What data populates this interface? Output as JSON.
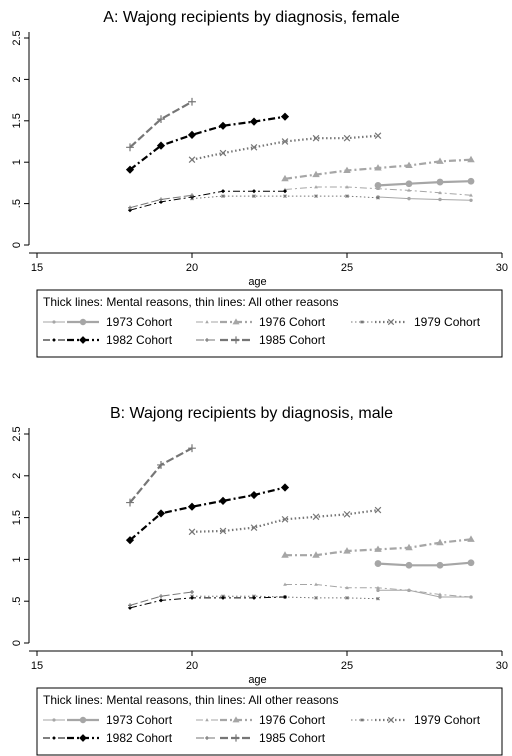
{
  "chart_data": [
    {
      "type": "line",
      "title": "A: Wajong recipients by diagnosis, female",
      "xlabel": "age",
      "ylabel": "",
      "xlim": [
        15,
        30
      ],
      "ylim": [
        0,
        2.5
      ],
      "xticks": [
        "15",
        "20",
        "25",
        "30"
      ],
      "yticks": [
        "0",
        ".5",
        "1",
        "1.5",
        "2",
        "2.5"
      ],
      "grid": false,
      "legend": {
        "placement": "bottom",
        "title": "Thick lines: Mental reasons, thin lines: All other reasons",
        "entries": [
          "1973 Cohort",
          "1976 Cohort",
          "1979 Cohort",
          "1982 Cohort",
          "1985 Cohort"
        ]
      },
      "series": [
        {
          "name": "1973 Cohort",
          "kind": "mental",
          "x": [
            26,
            27,
            28,
            29
          ],
          "y": [
            0.72,
            0.74,
            0.76,
            0.77
          ]
        },
        {
          "name": "1973 Cohort",
          "kind": "other",
          "x": [
            26,
            27,
            28,
            29
          ],
          "y": [
            0.58,
            0.56,
            0.55,
            0.54
          ]
        },
        {
          "name": "1976 Cohort",
          "kind": "mental",
          "x": [
            23,
            24,
            25,
            26,
            27,
            28,
            29
          ],
          "y": [
            0.8,
            0.85,
            0.9,
            0.93,
            0.96,
            1.01,
            1.03
          ]
        },
        {
          "name": "1976 Cohort",
          "kind": "other",
          "x": [
            23,
            24,
            25,
            26,
            27,
            28,
            29
          ],
          "y": [
            0.67,
            0.7,
            0.7,
            0.68,
            0.66,
            0.63,
            0.6
          ]
        },
        {
          "name": "1979 Cohort",
          "kind": "mental",
          "x": [
            20,
            21,
            22,
            23,
            24,
            25,
            26
          ],
          "y": [
            1.03,
            1.11,
            1.18,
            1.25,
            1.29,
            1.29,
            1.32
          ]
        },
        {
          "name": "1979 Cohort",
          "kind": "other",
          "x": [
            20,
            21,
            22,
            23,
            24,
            25,
            26
          ],
          "y": [
            0.56,
            0.59,
            0.59,
            0.59,
            0.59,
            0.59,
            0.57
          ]
        },
        {
          "name": "1982 Cohort",
          "kind": "mental",
          "x": [
            18,
            19,
            20,
            21,
            22,
            23
          ],
          "y": [
            0.91,
            1.2,
            1.33,
            1.44,
            1.49,
            1.55
          ]
        },
        {
          "name": "1982 Cohort",
          "kind": "other",
          "x": [
            18,
            19,
            20,
            21,
            22,
            23
          ],
          "y": [
            0.42,
            0.52,
            0.58,
            0.65,
            0.65,
            0.65
          ]
        },
        {
          "name": "1985 Cohort",
          "kind": "mental",
          "x": [
            18,
            19,
            20
          ],
          "y": [
            1.18,
            1.52,
            1.73
          ]
        },
        {
          "name": "1985 Cohort",
          "kind": "other",
          "x": [
            18,
            19,
            20
          ],
          "y": [
            0.45,
            0.55,
            0.6
          ]
        }
      ]
    },
    {
      "type": "line",
      "title": "B: Wajong recipients by diagnosis, male",
      "xlabel": "age",
      "ylabel": "",
      "xlim": [
        15,
        30
      ],
      "ylim": [
        0,
        2.5
      ],
      "xticks": [
        "15",
        "20",
        "25",
        "30"
      ],
      "yticks": [
        "0",
        ".5",
        "1",
        "1.5",
        "2",
        "2.5"
      ],
      "grid": false,
      "legend": {
        "placement": "bottom",
        "title": "Thick lines: Mental reasons, thin lines: All other reasons",
        "entries": [
          "1973 Cohort",
          "1976 Cohort",
          "1979 Cohort",
          "1982 Cohort",
          "1985 Cohort"
        ]
      },
      "series": [
        {
          "name": "1973 Cohort",
          "kind": "mental",
          "x": [
            26,
            27,
            28,
            29
          ],
          "y": [
            0.95,
            0.93,
            0.93,
            0.96
          ]
        },
        {
          "name": "1973 Cohort",
          "kind": "other",
          "x": [
            26,
            27,
            28,
            29
          ],
          "y": [
            0.63,
            0.63,
            0.55,
            0.55
          ]
        },
        {
          "name": "1976 Cohort",
          "kind": "mental",
          "x": [
            23,
            24,
            25,
            26,
            27,
            28,
            29
          ],
          "y": [
            1.05,
            1.05,
            1.1,
            1.12,
            1.14,
            1.2,
            1.24
          ]
        },
        {
          "name": "1976 Cohort",
          "kind": "other",
          "x": [
            23,
            24,
            25,
            26,
            27,
            28,
            29
          ],
          "y": [
            0.7,
            0.7,
            0.66,
            0.66,
            0.63,
            0.58,
            0.55
          ]
        },
        {
          "name": "1979 Cohort",
          "kind": "mental",
          "x": [
            20,
            21,
            22,
            23,
            24,
            25,
            26
          ],
          "y": [
            1.33,
            1.34,
            1.38,
            1.48,
            1.51,
            1.54,
            1.59
          ]
        },
        {
          "name": "1979 Cohort",
          "kind": "other",
          "x": [
            20,
            21,
            22,
            23,
            24,
            25,
            26
          ],
          "y": [
            0.56,
            0.56,
            0.56,
            0.55,
            0.54,
            0.54,
            0.53
          ]
        },
        {
          "name": "1982 Cohort",
          "kind": "mental",
          "x": [
            18,
            19,
            20,
            21,
            22,
            23
          ],
          "y": [
            1.23,
            1.55,
            1.63,
            1.7,
            1.77,
            1.86
          ]
        },
        {
          "name": "1982 Cohort",
          "kind": "other",
          "x": [
            18,
            19,
            20,
            21,
            22,
            23
          ],
          "y": [
            0.42,
            0.51,
            0.54,
            0.54,
            0.54,
            0.55
          ]
        },
        {
          "name": "1985 Cohort",
          "kind": "mental",
          "x": [
            18,
            19,
            20
          ],
          "y": [
            1.68,
            2.13,
            2.33
          ]
        },
        {
          "name": "1985 Cohort",
          "kind": "other",
          "x": [
            18,
            19,
            20
          ],
          "y": [
            0.45,
            0.56,
            0.61
          ]
        }
      ]
    }
  ],
  "styles": {
    "1973 Cohort": {
      "color": "#a6a6a6",
      "dash": "",
      "marker": "circle"
    },
    "1976 Cohort": {
      "color": "#a6a6a6",
      "dash": "7 3 2 3",
      "marker": "triangle"
    },
    "1979 Cohort": {
      "color": "#767676",
      "dash": "1.5 2.5",
      "marker": "x"
    },
    "1982 Cohort": {
      "color": "#000000",
      "dash": "7 3 2 3",
      "marker": "diamond"
    },
    "1985 Cohort": {
      "color": "#767676",
      "dash": "8 3",
      "marker": "plus"
    }
  }
}
